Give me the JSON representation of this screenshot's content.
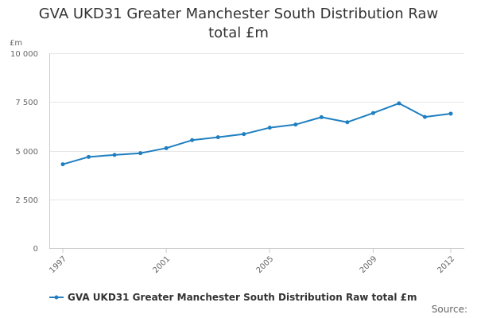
{
  "colors": {
    "series": "#1f7fc0",
    "grid": "#e6e6e6",
    "axis_text": "#666666",
    "title": "#333333"
  },
  "chart_data": {
    "type": "line",
    "title": "GVA UKD31 Greater Manchester South Distribution Raw total £m",
    "title_lines": [
      "GVA UKD31 Greater Manchester South Distribution Raw",
      "total £m"
    ],
    "unit_label": "£m",
    "xlabel": "",
    "ylabel": "£m",
    "ylim": [
      0,
      10000
    ],
    "y_ticks": [
      0,
      2500,
      5000,
      7500,
      10000
    ],
    "y_tick_labels": [
      "0",
      "2 500",
      "5 000",
      "7 500",
      "10 000"
    ],
    "xlim": [
      1997,
      2012
    ],
    "x_tick_labels": [
      "1997",
      "2001",
      "2005",
      "2009",
      "2012"
    ],
    "grid": true,
    "legend_position": "bottom-left",
    "series": [
      {
        "name": "GVA UKD31 Greater Manchester South Distribution Raw total £m",
        "x": [
          1997,
          1998,
          1999,
          2000,
          2001,
          2002,
          2003,
          2004,
          2005,
          2006,
          2007,
          2008,
          2009,
          2010,
          2011,
          2012
        ],
        "values": [
          4300,
          4680,
          4780,
          4870,
          5130,
          5540,
          5690,
          5850,
          6180,
          6340,
          6720,
          6460,
          6930,
          7430,
          6730,
          6900
        ]
      }
    ]
  },
  "legend": {
    "label": "GVA UKD31 Greater Manchester South Distribution Raw total £m"
  },
  "source": {
    "label": "Source:"
  }
}
